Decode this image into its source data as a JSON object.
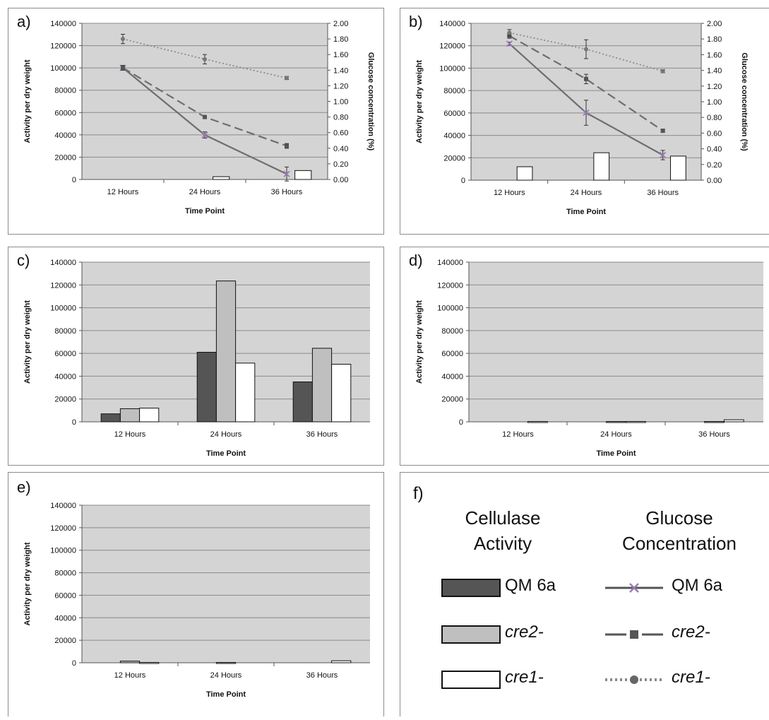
{
  "chart_data": [
    {
      "panel": "a)",
      "type": "bar+line",
      "categories": [
        "12 Hours",
        "24 Hours",
        "36 Hours"
      ],
      "xlabel": "Time Point",
      "ylabel": "Activity per dry weight",
      "y2label": "Glucose concentration (%)",
      "ylim": [
        0,
        140000
      ],
      "y2lim": [
        0,
        2.0
      ],
      "yticks": [
        "0",
        "20000",
        "40000",
        "60000",
        "80000",
        "100000",
        "120000",
        "140000"
      ],
      "y2ticks": [
        "0.00",
        "0.20",
        "0.40",
        "0.60",
        "0.80",
        "1.00",
        "1.20",
        "1.40",
        "1.60",
        "1.80",
        "2.00"
      ],
      "bars": [
        {
          "series": "QM 6a",
          "values": [
            0,
            0,
            0
          ]
        },
        {
          "series": "cre2-",
          "values": [
            0,
            0,
            0
          ]
        },
        {
          "series": "cre1-",
          "values": [
            0,
            2500,
            8000
          ]
        }
      ],
      "lines": [
        {
          "series": "QM 6a",
          "values": [
            1.43,
            0.57,
            0.07
          ],
          "err": [
            0.03,
            0.04,
            0.09
          ]
        },
        {
          "series": "cre2-",
          "values": [
            1.43,
            0.8,
            0.43
          ],
          "err": [
            0.03,
            0.01,
            0.03
          ]
        },
        {
          "series": "cre1-",
          "values": [
            1.8,
            1.54,
            1.3
          ],
          "err": [
            0.06,
            0.06,
            0.02
          ]
        }
      ]
    },
    {
      "panel": "b)",
      "type": "bar+line",
      "categories": [
        "12 Hours",
        "24 Hours",
        "36 Hours"
      ],
      "xlabel": "Time Point",
      "ylabel": "Activity per dry weight",
      "y2label": "Glucose concentration (%)",
      "ylim": [
        0,
        140000
      ],
      "y2lim": [
        0,
        2.0
      ],
      "yticks": [
        "0",
        "20000",
        "40000",
        "60000",
        "80000",
        "100000",
        "120000",
        "140000"
      ],
      "y2ticks": [
        "0.00",
        "0.20",
        "0.40",
        "0.60",
        "0.80",
        "1.00",
        "1.20",
        "1.40",
        "1.60",
        "1.80",
        "2.00"
      ],
      "bars": [
        {
          "series": "QM 6a",
          "values": [
            0,
            0,
            0
          ]
        },
        {
          "series": "cre2-",
          "values": [
            0,
            0,
            0
          ]
        },
        {
          "series": "cre1-",
          "values": [
            12000,
            24500,
            21500
          ]
        }
      ],
      "lines": [
        {
          "series": "QM 6a",
          "values": [
            1.74,
            0.86,
            0.32
          ],
          "err": [
            0.02,
            0.16,
            0.06
          ]
        },
        {
          "series": "cre2-",
          "values": [
            1.84,
            1.29,
            0.63
          ],
          "err": [
            0.03,
            0.06,
            0.02
          ]
        },
        {
          "series": "cre1-",
          "values": [
            1.88,
            1.67,
            1.39
          ],
          "err": [
            0.04,
            0.12,
            0.02
          ]
        }
      ]
    },
    {
      "panel": "c)",
      "type": "bar",
      "categories": [
        "12 Hours",
        "24 Hours",
        "36 Hours"
      ],
      "xlabel": "Time Point",
      "ylabel": "Activity per dry weight",
      "ylim": [
        0,
        140000
      ],
      "yticks": [
        "0",
        "20000",
        "40000",
        "60000",
        "80000",
        "100000",
        "120000",
        "140000"
      ],
      "bars": [
        {
          "series": "QM 6a",
          "values": [
            7000,
            61000,
            35000
          ]
        },
        {
          "series": "cre2-",
          "values": [
            11500,
            123500,
            64500
          ]
        },
        {
          "series": "cre1-",
          "values": [
            12000,
            51500,
            50500
          ]
        }
      ]
    },
    {
      "panel": "d)",
      "type": "bar",
      "categories": [
        "12 Hours",
        "24 Hours",
        "36 Hours"
      ],
      "xlabel": "Time Point",
      "ylabel": "Activity per dry weight",
      "ylim": [
        0,
        140000
      ],
      "yticks": [
        "0",
        "20000",
        "40000",
        "60000",
        "80000",
        "100000",
        "120000",
        "140000"
      ],
      "bars": [
        {
          "series": "QM 6a",
          "values": [
            0,
            0,
            0
          ]
        },
        {
          "series": "cre2-",
          "values": [
            0,
            300,
            300
          ]
        },
        {
          "series": "cre1-",
          "values": [
            300,
            300,
            1800
          ]
        }
      ]
    },
    {
      "panel": "e)",
      "type": "bar",
      "categories": [
        "12 Hours",
        "24 Hours",
        "36 Hours"
      ],
      "xlabel": "Time Point",
      "ylabel": "Activity per dry weight",
      "ylim": [
        0,
        140000
      ],
      "yticks": [
        "0",
        "20000",
        "40000",
        "60000",
        "80000",
        "100000",
        "120000",
        "140000"
      ],
      "bars": [
        {
          "series": "QM 6a",
          "values": [
            0,
            0,
            0
          ]
        },
        {
          "series": "cre2-",
          "values": [
            1500,
            300,
            0
          ]
        },
        {
          "series": "cre1-",
          "values": [
            300,
            0,
            1800
          ]
        }
      ]
    }
  ],
  "legend": {
    "panel": "f)",
    "col1_head_line1": "Cellulase",
    "col1_head_line2": "Activity",
    "col2_head_line1": "Glucose",
    "col2_head_line2": "Concentration",
    "items": [
      {
        "label": "QM 6a",
        "italic": false,
        "bar_color": "#555555",
        "line_style": "solid",
        "marker": "x"
      },
      {
        "label": "cre2-",
        "italic": true,
        "bar_color": "#bfbfbf",
        "line_style": "dashed",
        "marker": "square"
      },
      {
        "label": "cre1-",
        "italic": true,
        "bar_color": "#ffffff",
        "line_style": "dotted",
        "marker": "circle"
      }
    ]
  },
  "colors": {
    "plot_bg": "#d4d4d4",
    "grid": "#8a8a8a",
    "bar_qm6a": "#555555",
    "bar_cre2": "#bfbfbf",
    "bar_cre1": "#ffffff",
    "line": "#6e6e6e",
    "marker_x": "#9b7bb8"
  }
}
